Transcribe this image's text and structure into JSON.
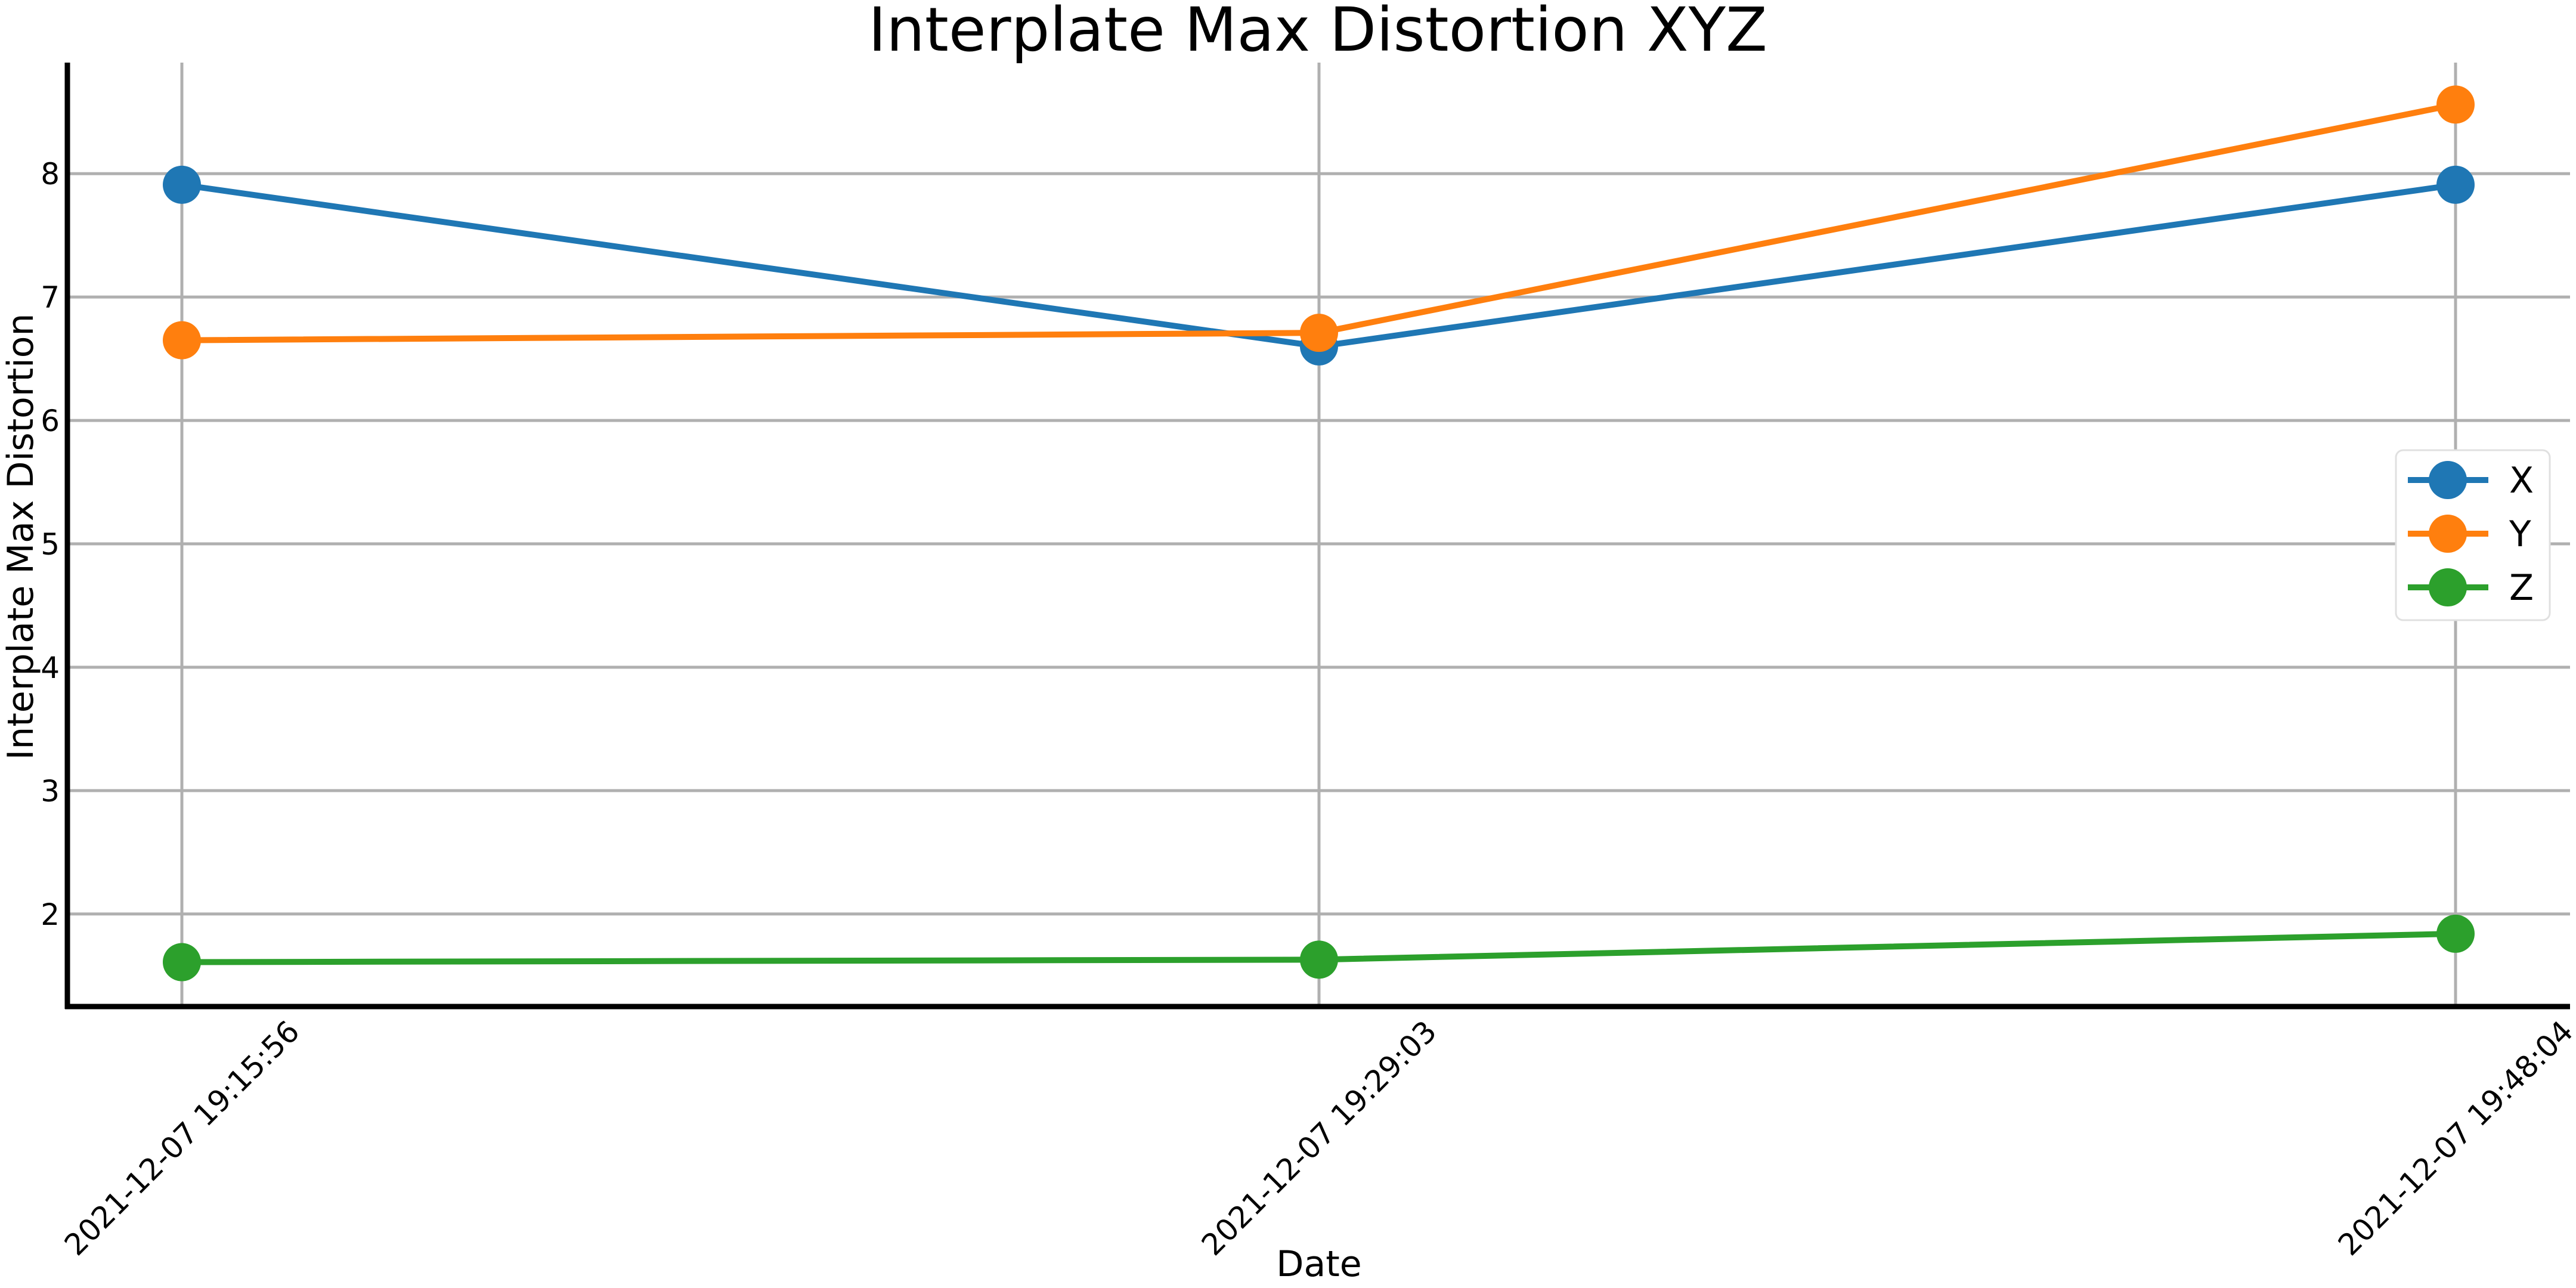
{
  "chart_data": {
    "type": "line",
    "title": "Interplate Max Distortion XYZ",
    "xlabel": "Date",
    "ylabel": "Interplate Max Distortion",
    "categories": [
      "2021-12-07 19:15:56",
      "2021-12-07 19:29:03",
      "2021-12-07 19:48:04"
    ],
    "yticks": [
      2,
      3,
      4,
      5,
      6,
      7,
      8
    ],
    "ylim": [
      1.25,
      8.9
    ],
    "grid": true,
    "legend_position": "center-right",
    "series": [
      {
        "name": "X",
        "color": "#1f77b4",
        "values": [
          7.91,
          6.6,
          7.91
        ]
      },
      {
        "name": "Y",
        "color": "#ff7f0e",
        "values": [
          6.65,
          6.71,
          8.56
        ]
      },
      {
        "name": "Z",
        "color": "#2ca02c",
        "values": [
          1.61,
          1.63,
          1.84
        ]
      }
    ]
  }
}
